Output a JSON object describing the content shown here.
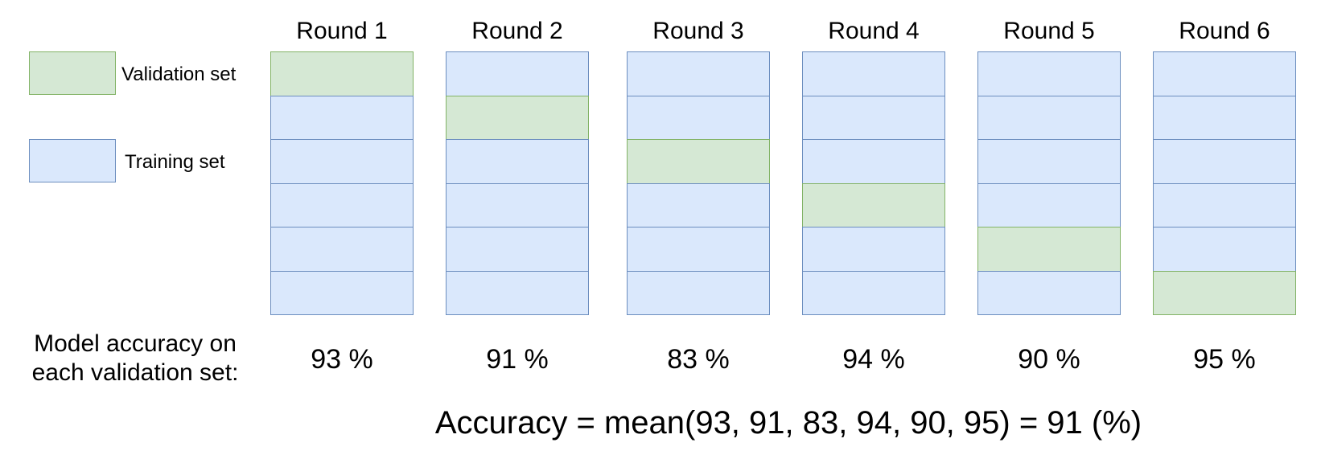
{
  "legend": {
    "validation_label": "Validation set",
    "training_label": "Training set"
  },
  "colors": {
    "validation_fill": "#d5e8d4",
    "validation_border": "#82b366",
    "training_fill": "#dae8fc",
    "training_border": "#6c8ebf"
  },
  "folds_per_round": 6,
  "rounds": [
    {
      "title": "Round 1",
      "validation_fold": 1,
      "accuracy": "93 %"
    },
    {
      "title": "Round 2",
      "validation_fold": 2,
      "accuracy": "91 %"
    },
    {
      "title": "Round 3",
      "validation_fold": 3,
      "accuracy": "83 %"
    },
    {
      "title": "Round 4",
      "validation_fold": 4,
      "accuracy": "94 %"
    },
    {
      "title": "Round 5",
      "validation_fold": 5,
      "accuracy": "90 %"
    },
    {
      "title": "Round 6",
      "validation_fold": 6,
      "accuracy": "95 %"
    }
  ],
  "accuracy_caption": {
    "line1": "Model accuracy on",
    "line2": "each validation set:"
  },
  "formula": "Accuracy = mean(93, 91, 83, 94, 90, 95) = 91 (%)"
}
